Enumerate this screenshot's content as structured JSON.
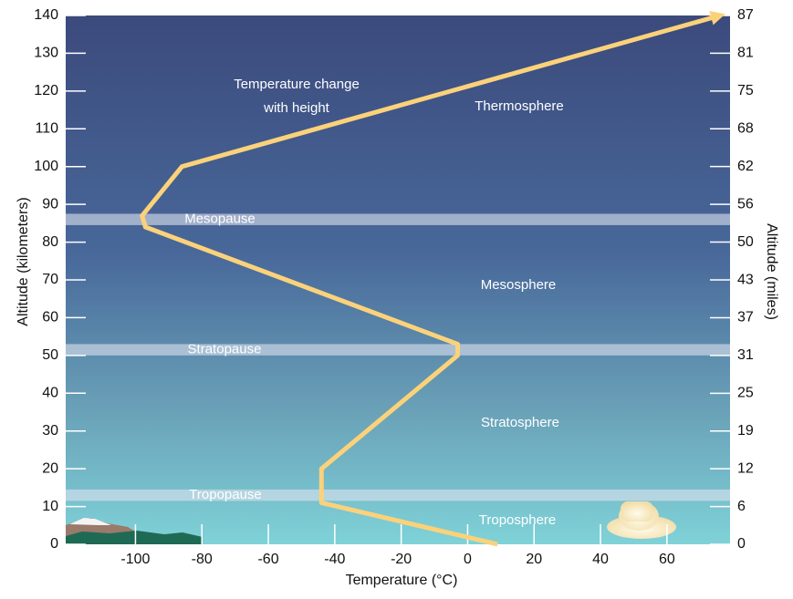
{
  "chart_data": {
    "type": "line",
    "xlabel": "Temperature (°C)",
    "ylabel": "Altitude (kilometers)",
    "y2label": "Altitude (miles)",
    "xlim": [
      -121,
      79
    ],
    "xticks": [
      -100,
      -80,
      -60,
      -40,
      -20,
      0,
      20,
      40,
      60
    ],
    "ylim": [
      0,
      140
    ],
    "yticks": [
      0,
      10,
      20,
      30,
      40,
      50,
      60,
      70,
      80,
      90,
      100,
      110,
      120,
      130,
      140
    ],
    "y2lim": [
      0,
      86.99
    ],
    "y2ticks": [
      0,
      {
        "value": 6.21,
        "label": "6"
      },
      {
        "value": 12.43,
        "label": "12"
      },
      {
        "value": 18.64,
        "label": "19"
      },
      {
        "value": 24.85,
        "label": "25"
      },
      {
        "value": 31.07,
        "label": "31"
      },
      {
        "value": 37.28,
        "label": "37"
      },
      {
        "value": 43.49,
        "label": "43"
      },
      {
        "value": 49.71,
        "label": "50"
      },
      {
        "value": 55.92,
        "label": "56"
      },
      {
        "value": 62.14,
        "label": "62"
      },
      {
        "value": 68.35,
        "label": "68"
      },
      {
        "value": 74.56,
        "label": "75"
      },
      {
        "value": 80.78,
        "label": "81"
      },
      {
        "value": 86.99,
        "label": "87"
      }
    ],
    "series": [
      {
        "color": "#fbd27a",
        "x": [
          9,
          -44,
          -44,
          -3,
          -3,
          -97,
          -98,
          -86,
          76
        ],
        "values": [
          0,
          11,
          20,
          50,
          53,
          84,
          87,
          100,
          140
        ]
      }
    ],
    "bands": [
      {
        "label": "Tropopause",
        "bottom": 11.5,
        "top": 14.5
      },
      {
        "label": "Stratopause",
        "bottom": 50,
        "top": 53
      },
      {
        "label": "Mesopause",
        "bottom": 84.5,
        "top": 87.5
      }
    ],
    "layers": [
      "Troposphere",
      "Stratosphere",
      "Mesosphere",
      "Thermosphere"
    ],
    "annotation": [
      "Temperature change",
      "with height"
    ]
  }
}
